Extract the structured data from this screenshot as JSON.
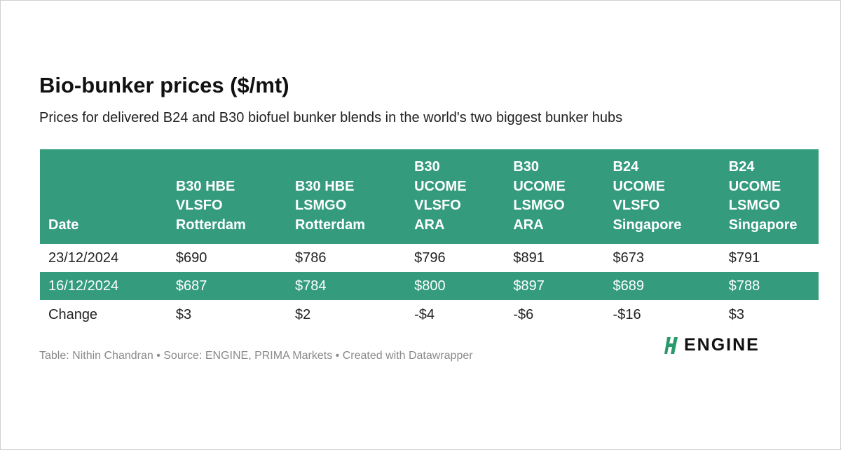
{
  "header": {
    "title": "Bio-bunker prices ($/mt)",
    "subtitle": "Prices for delivered B24 and B30 biofuel bunker blends in the world's two biggest bunker hubs"
  },
  "table": {
    "columns": [
      [
        "Date"
      ],
      [
        "B30 HBE",
        "VLSFO",
        "Rotterdam"
      ],
      [
        "B30 HBE",
        "LSMGO",
        "Rotterdam"
      ],
      [
        "B30",
        "UCOME",
        "VLSFO",
        "ARA"
      ],
      [
        "B30",
        "UCOME",
        "LSMGO",
        "ARA"
      ],
      [
        "B24",
        "UCOME",
        "VLSFO",
        "Singapore"
      ],
      [
        "B24",
        "UCOME",
        "LSMGO",
        "Singapore"
      ]
    ],
    "rows": [
      [
        "23/12/2024",
        "$690",
        "$786",
        "$796",
        "$891",
        "$673",
        "$791"
      ],
      [
        "16/12/2024",
        "$687",
        "$784",
        "$800",
        "$897",
        "$689",
        "$788"
      ],
      [
        "Change",
        "$3",
        "$2",
        "-$4",
        "-$6",
        "-$16",
        "$3"
      ]
    ]
  },
  "footer": "Table: Nithin Chandran • Source: ENGINE, PRIMA Markets • Created with Datawrapper",
  "logo": "ENGINE"
}
